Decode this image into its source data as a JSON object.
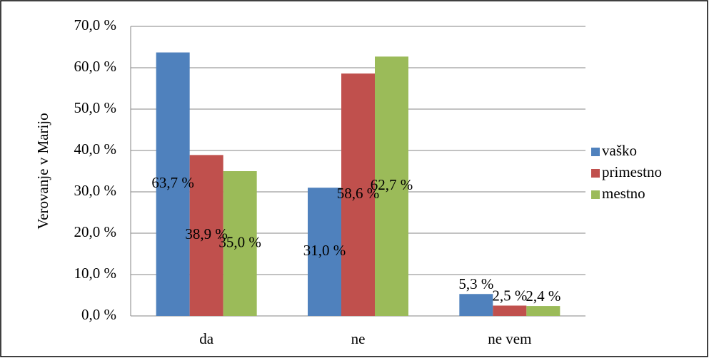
{
  "chart_data": {
    "type": "bar",
    "y_label": "Verovanje v Marijo",
    "categories": [
      "da",
      "ne",
      "ne vem"
    ],
    "series": [
      {
        "name": "vaško",
        "color": "#4f81bd",
        "values": [
          63.7,
          31.0,
          5.3
        ],
        "value_labels": [
          "63,7 %",
          "31,0 %",
          "5,3 %"
        ]
      },
      {
        "name": "primestno",
        "color": "#c0504d",
        "values": [
          38.9,
          58.6,
          2.5
        ],
        "value_labels": [
          "38,9 %",
          "58,6 %",
          "2,5 %"
        ]
      },
      {
        "name": "mestno",
        "color": "#9bbb59",
        "values": [
          35.0,
          62.7,
          2.4
        ],
        "value_labels": [
          "35,0 %",
          "62,7 %",
          "2,4 %"
        ]
      }
    ],
    "ylim": [
      0,
      70
    ],
    "yticks": [
      {
        "value": 0,
        "label": "0,0 %"
      },
      {
        "value": 10,
        "label": "10,0 %"
      },
      {
        "value": 20,
        "label": "20,0 %"
      },
      {
        "value": 30,
        "label": "30,0 %"
      },
      {
        "value": 40,
        "label": "40,0 %"
      },
      {
        "value": 50,
        "label": "50,0 %"
      },
      {
        "value": 60,
        "label": "60,0 %"
      },
      {
        "value": 70,
        "label": "70,0 %"
      }
    ],
    "grid": true,
    "legend": "right"
  }
}
